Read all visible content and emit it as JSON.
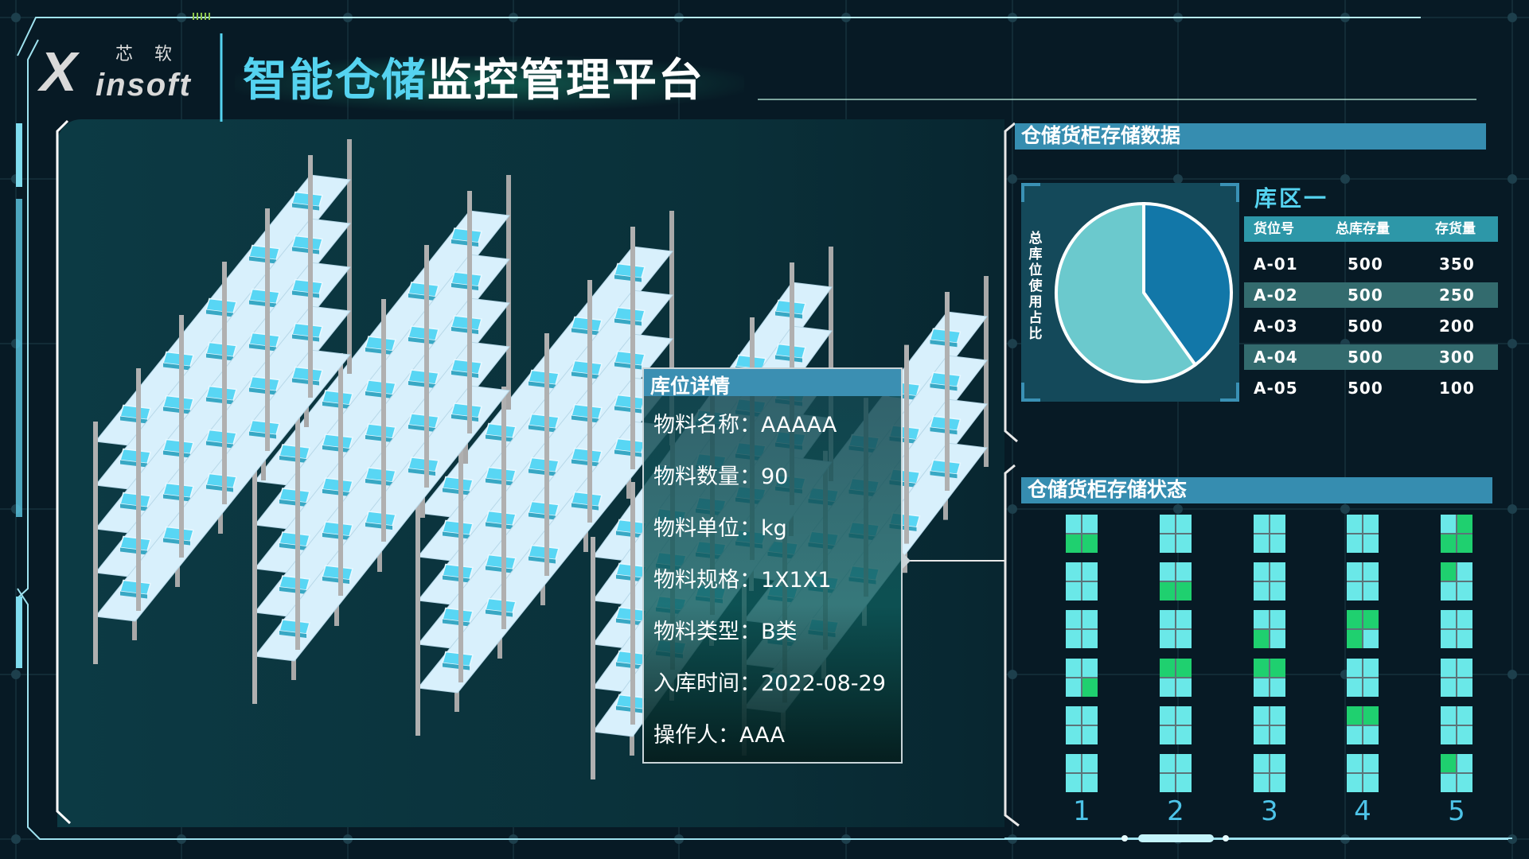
{
  "header": {
    "logo_cn": "芯 软",
    "logo_x": "X",
    "logo_en": "insoft",
    "title_highlight": "智能仓储",
    "title_rest": "监控管理平台"
  },
  "popup": {
    "title": "库位详情",
    "rows": [
      {
        "label": "物料名称：",
        "value": "AAAAA"
      },
      {
        "label": "物料数量：",
        "value": "90"
      },
      {
        "label": "物料单位：",
        "value": "kg"
      },
      {
        "label": "物料规格：",
        "value": "1X1X1"
      },
      {
        "label": "物料类型：",
        "value": "B类"
      },
      {
        "label": "入库时间：",
        "value": "2022-08-29"
      },
      {
        "label": "操作人：",
        "value": "AAA"
      }
    ]
  },
  "storage_data": {
    "title": "仓储货柜存储数据",
    "pie_label": "总库位使用占比",
    "pie": {
      "type": "pie",
      "values": [
        40,
        60
      ],
      "colors": [
        "#1277a8",
        "#6bc9cd"
      ]
    },
    "zone": "库区一",
    "columns": [
      "货位号",
      "总库存量",
      "存货量"
    ],
    "rows": [
      [
        "A-01",
        "500",
        "350"
      ],
      [
        "A-02",
        "500",
        "250"
      ],
      [
        "A-03",
        "500",
        "200"
      ],
      [
        "A-04",
        "500",
        "300"
      ],
      [
        "A-05",
        "500",
        "100"
      ]
    ]
  },
  "storage_status": {
    "title": "仓储货柜存储状态",
    "columns": [
      "1",
      "2",
      "3",
      "4",
      "5"
    ],
    "colors": {
      "empty": "#6ae8e8",
      "occupied": "#1fd06f"
    },
    "cells": [
      [
        [
          0,
          0,
          1,
          1
        ],
        [
          0,
          0,
          0,
          0
        ],
        [
          0,
          0,
          0,
          0
        ],
        [
          0,
          0,
          0,
          1
        ],
        [
          0,
          0,
          0,
          0
        ],
        [
          0,
          0,
          0,
          0
        ]
      ],
      [
        [
          0,
          0,
          0,
          0
        ],
        [
          0,
          0,
          1,
          1
        ],
        [
          0,
          0,
          0,
          0
        ],
        [
          1,
          1,
          0,
          0
        ],
        [
          0,
          0,
          0,
          0
        ],
        [
          0,
          0,
          0,
          0
        ]
      ],
      [
        [
          0,
          0,
          0,
          0
        ],
        [
          0,
          0,
          0,
          0
        ],
        [
          0,
          0,
          1,
          0
        ],
        [
          1,
          1,
          0,
          0
        ],
        [
          0,
          0,
          0,
          0
        ],
        [
          0,
          0,
          0,
          0
        ]
      ],
      [
        [
          0,
          0,
          0,
          0
        ],
        [
          0,
          0,
          0,
          0
        ],
        [
          1,
          1,
          1,
          0
        ],
        [
          0,
          0,
          0,
          0
        ],
        [
          1,
          1,
          0,
          0
        ],
        [
          0,
          0,
          0,
          0
        ]
      ],
      [
        [
          0,
          1,
          1,
          1
        ],
        [
          1,
          0,
          0,
          0
        ],
        [
          0,
          0,
          0,
          0
        ],
        [
          0,
          0,
          0,
          0
        ],
        [
          0,
          0,
          0,
          0
        ],
        [
          1,
          0,
          0,
          0
        ]
      ]
    ]
  }
}
